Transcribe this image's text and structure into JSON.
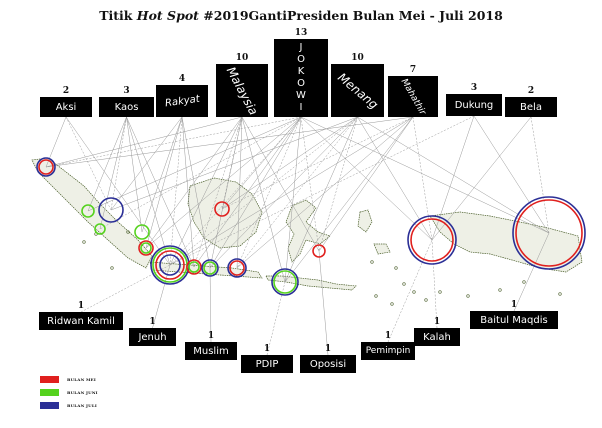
{
  "title": {
    "prefix": "Titik ",
    "italic": "Hot Spot",
    "suffix": " #2019GantiPresiden Bulan Mei - Juli 2018"
  },
  "top_nodes": [
    {
      "id": "aksi",
      "label": "Aksi",
      "count": "2"
    },
    {
      "id": "kaos",
      "label": "Kaos",
      "count": "3"
    },
    {
      "id": "rakyat",
      "label": "Rakyat",
      "count": "4"
    },
    {
      "id": "malaysia",
      "label": "Malaysia",
      "count": "10"
    },
    {
      "id": "jokowi",
      "label": "JOKOWI",
      "count": "13"
    },
    {
      "id": "menang",
      "label": "Menang",
      "count": "10"
    },
    {
      "id": "mahathir",
      "label": "Mahathir",
      "count": "7"
    },
    {
      "id": "dukung",
      "label": "Dukung",
      "count": "3"
    },
    {
      "id": "bela",
      "label": "Bela",
      "count": "2"
    }
  ],
  "bottom_nodes": [
    {
      "id": "ridwan",
      "label": "Ridwan Kamil",
      "count": "1"
    },
    {
      "id": "jenuh",
      "label": "Jenuh",
      "count": "1"
    },
    {
      "id": "muslim",
      "label": "Muslim",
      "count": "1"
    },
    {
      "id": "pdip",
      "label": "PDIP",
      "count": "1"
    },
    {
      "id": "oposisi",
      "label": "Oposisi",
      "count": "1"
    },
    {
      "id": "pemimpin",
      "label": "Pemimpin",
      "count": "1"
    },
    {
      "id": "kalah",
      "label": "Kalah",
      "count": "1"
    },
    {
      "id": "baitul",
      "label": "Baitul Maqdis",
      "count": "1"
    }
  ],
  "legend": [
    {
      "label": "BULAN MEI",
      "color": "#e0201e"
    },
    {
      "label": "BULAN JUNI",
      "color": "#55d21e"
    },
    {
      "label": "BULAN JULI",
      "color": "#2b2f96"
    }
  ],
  "colors": {
    "may": "#e0201e",
    "june": "#55d21e",
    "july": "#2b2f96",
    "edge": "#9a9a9a",
    "map": "#4a5e2a"
  }
}
